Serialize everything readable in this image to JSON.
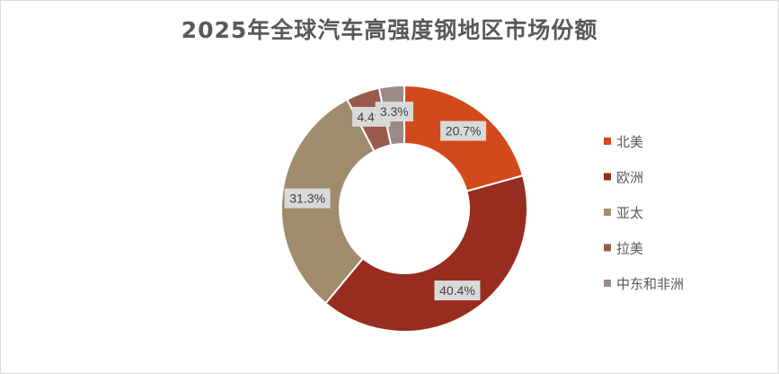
{
  "chart_data": {
    "type": "pie",
    "variant": "donut",
    "title": "2025年全球汽车高强度钢地区市场份额",
    "categories": [
      "北美",
      "欧洲",
      "亚太",
      "拉美",
      "中东和非洲"
    ],
    "values": [
      20.7,
      40.4,
      31.3,
      4.4,
      3.3
    ],
    "data_labels": [
      "20.7%",
      "40.4%",
      "31.3%",
      "4.4%",
      "3.3%"
    ],
    "colors": [
      "#d24a1c",
      "#972c1f",
      "#a08c6c",
      "#9a5a4c",
      "#9b8a89"
    ],
    "legend_position": "right"
  }
}
